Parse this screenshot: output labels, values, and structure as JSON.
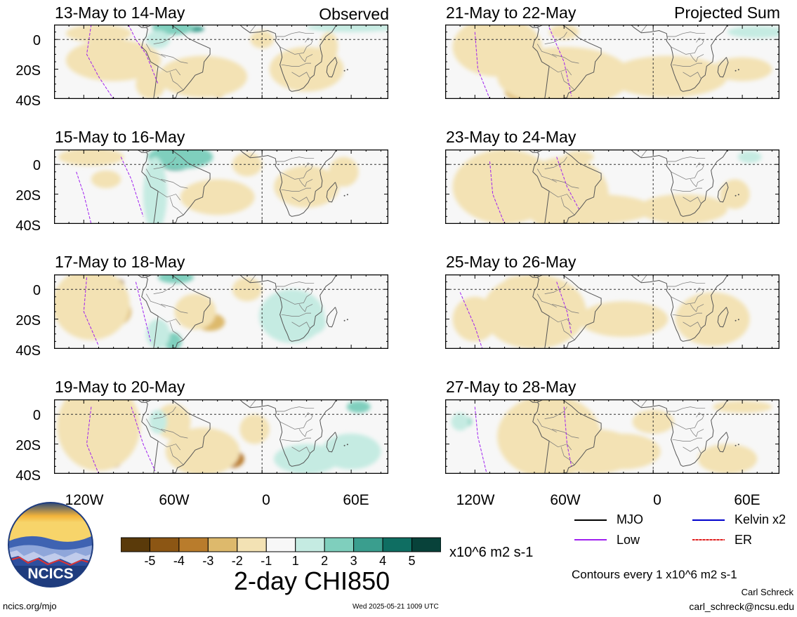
{
  "headers": {
    "left_tag": "Observed",
    "right_tag": "Projected Sum"
  },
  "panels": {
    "left": [
      {
        "title": "13-May to 14-May"
      },
      {
        "title": "15-May to 16-May"
      },
      {
        "title": "17-May to 18-May"
      },
      {
        "title": "19-May to 20-May"
      }
    ],
    "right": [
      {
        "title": "21-May to 22-May"
      },
      {
        "title": "23-May to 24-May"
      },
      {
        "title": "25-May to 26-May"
      },
      {
        "title": "27-May to 28-May"
      }
    ]
  },
  "lat_labels": [
    "0",
    "20S",
    "40S"
  ],
  "lon_labels": [
    "120W",
    "60W",
    "0",
    "60E"
  ],
  "legend": {
    "mjo": "MJO",
    "kelvin": "Kelvin x2",
    "low": "Low",
    "er": "ER",
    "colors": {
      "mjo": "#000000",
      "kelvin": "#0000cc",
      "low": "#a020f0",
      "er": "#e02020"
    }
  },
  "colorbar": {
    "labels": [
      "-5",
      "-4",
      "-3",
      "-2",
      "-1",
      "1",
      "2",
      "3",
      "4",
      "5"
    ],
    "colors": [
      "#5a3a0a",
      "#8c5614",
      "#b97c2c",
      "#ddb96c",
      "#f3e2b4",
      "#f7f7f7",
      "#c5ebe2",
      "#7fcfbd",
      "#3a9e8e",
      "#0f6e62",
      "#08423a"
    ],
    "units": "x10^6 m2 s-1"
  },
  "main_title": "2-day CHI850",
  "contours_note": "Contours every 1 x10^6 m2 s-1",
  "logo_text": "NCICS",
  "footer": {
    "url": "ncics.org/mjo",
    "timestamp": "Wed 2025-05-21 1009 UTC",
    "author": "Carl Schreck",
    "email": "carl_schreck@ncsu.edu"
  }
}
